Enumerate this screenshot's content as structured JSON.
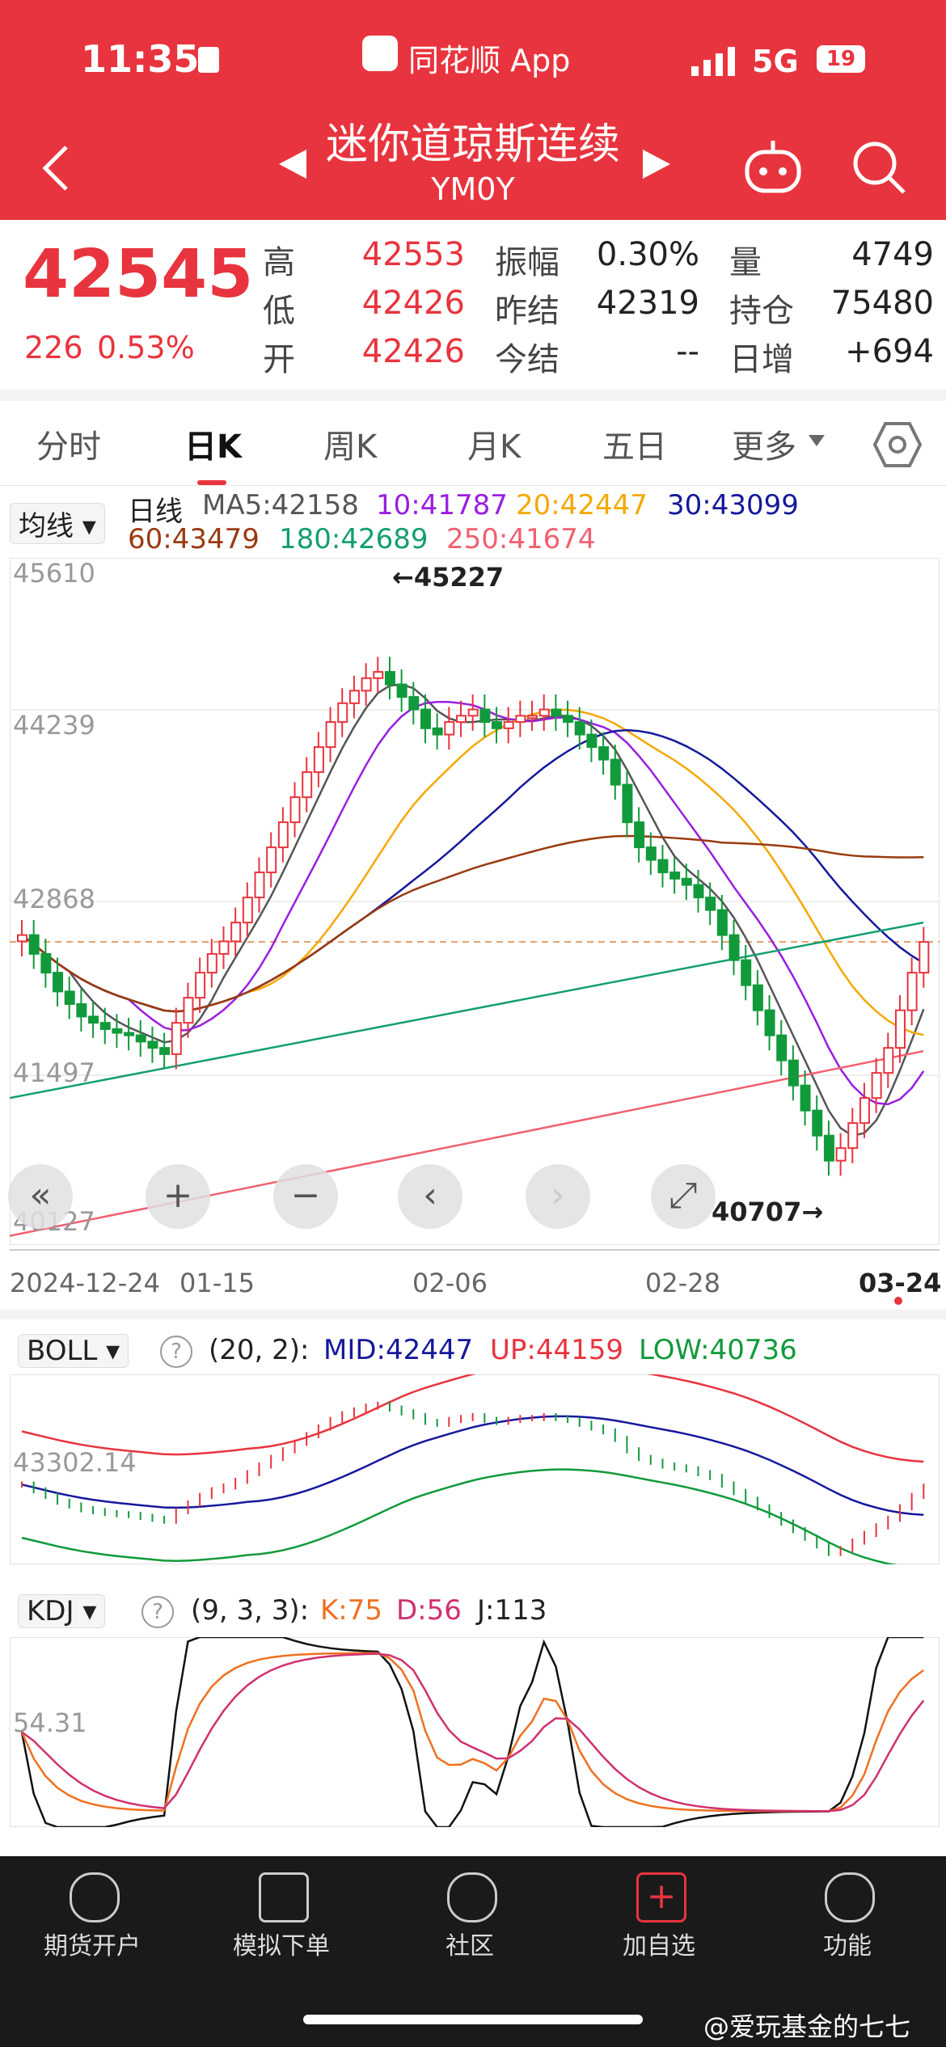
{
  "status": {
    "time": "11:35",
    "app": "同花顺 App",
    "network": "5G",
    "battery": "19"
  },
  "header": {
    "title": "迷你道琼斯连续",
    "code": "YM0Y"
  },
  "quote": {
    "price": "42545",
    "change": "226",
    "change_pct": "0.53%",
    "high_label": "高",
    "high": "42553",
    "low_label": "低",
    "low": "42426",
    "open_label": "开",
    "open": "42426",
    "amp_label": "振幅",
    "amp": "0.30%",
    "prev_label": "昨结",
    "prev": "42319",
    "today_label": "今结",
    "today": "--",
    "vol_label": "量",
    "vol": "4749",
    "oi_label": "持仓",
    "oi": "75480",
    "inc_label": "日增",
    "inc": "+694"
  },
  "tabs": [
    "分时",
    "日K",
    "周K",
    "月K",
    "五日",
    "更多"
  ],
  "ma": {
    "selector": "均线",
    "line_label": "日线",
    "ma5": "MA5:42158",
    "ma10": "10:41787",
    "ma20": "20:42447",
    "ma30": "30:43099",
    "ma60": "60:43479",
    "ma180": "180:42689",
    "ma250": "250:41674"
  },
  "colors": {
    "red": "#e8343e",
    "green": "#119a3b",
    "ma5": "#555555",
    "ma10": "#9a1ee0",
    "ma20": "#f5a800",
    "ma30": "#16189c",
    "ma60": "#9a3a10",
    "ma180": "#139e73",
    "ma250": "#f06070"
  },
  "chart_data": {
    "type": "candlestick",
    "y_ticks": [
      "45610",
      "44239",
      "42868",
      "41497",
      "40127"
    ],
    "ylim": [
      40127,
      45610
    ],
    "max_label": "←45227",
    "min_label": "40707→",
    "dates": [
      "2024-12-24",
      "01-15",
      "02-06",
      "02-28",
      "03-24"
    ],
    "close_series": [
      42600,
      42450,
      42300,
      42150,
      42050,
      41950,
      41900,
      41850,
      41820,
      41800,
      41750,
      41700,
      41650,
      41900,
      42100,
      42300,
      42450,
      42550,
      42700,
      42900,
      43100,
      43300,
      43500,
      43700,
      43900,
      44100,
      44300,
      44450,
      44550,
      44650,
      44700,
      44600,
      44500,
      44400,
      44250,
      44200,
      44300,
      44350,
      44400,
      44300,
      44250,
      44300,
      44350,
      44350,
      44400,
      44350,
      44300,
      44200,
      44100,
      44000,
      43800,
      43500,
      43300,
      43200,
      43100,
      43050,
      43000,
      42900,
      42800,
      42600,
      42400,
      42200,
      42000,
      41800,
      41600,
      41400,
      41200,
      41000,
      40800,
      40900,
      41100,
      41300,
      41500,
      41700,
      42000,
      42300,
      42545
    ]
  },
  "controls": [
    "«",
    "+",
    "−",
    "‹",
    "›",
    "⤢"
  ],
  "boll": {
    "selector": "BOLL",
    "params": "(20, 2):",
    "mid": "MID:42447",
    "up": "UP:44159",
    "low": "LOW:40736",
    "axis": "43302.14"
  },
  "kdj": {
    "selector": "KDJ",
    "params": "(9, 3, 3):",
    "k": "K:75",
    "d": "D:56",
    "j": "J:113",
    "axis": "54.31"
  },
  "bottom_nav": [
    "期货开户",
    "模拟下单",
    "社区",
    "加自选",
    "功能"
  ],
  "watermark": "@爱玩基金的七七"
}
